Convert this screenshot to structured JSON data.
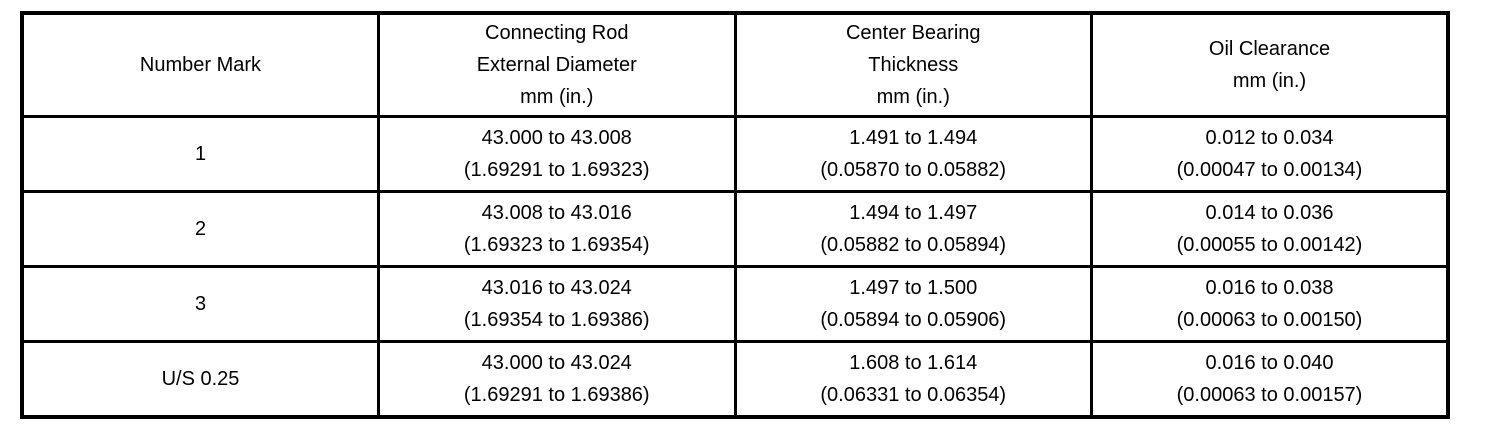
{
  "page": {
    "background_color": "#ffffff",
    "border_color": "#000000",
    "text_color": "#000000"
  },
  "table": {
    "columns": [
      {
        "label_lines": [
          "Number Mark"
        ]
      },
      {
        "label_lines": [
          "Connecting Rod",
          "External Diameter",
          "mm (in.)"
        ]
      },
      {
        "label_lines": [
          "Center Bearing",
          "Thickness",
          "mm (in.)"
        ]
      },
      {
        "label_lines": [
          "Oil Clearance",
          "mm (in.)"
        ]
      }
    ],
    "rows": [
      {
        "number_mark": "1",
        "rod_external_diameter_mm": "43.000 to 43.008",
        "rod_external_diameter_in": "(1.69291 to 1.69323)",
        "center_bearing_thickness_mm": "1.491 to 1.494",
        "center_bearing_thickness_in": "(0.05870 to 0.05882)",
        "oil_clearance_mm": "0.012 to 0.034",
        "oil_clearance_in": "(0.00047 to 0.00134)"
      },
      {
        "number_mark": "2",
        "rod_external_diameter_mm": "43.008 to 43.016",
        "rod_external_diameter_in": "(1.69323 to 1.69354)",
        "center_bearing_thickness_mm": "1.494 to 1.497",
        "center_bearing_thickness_in": "(0.05882 to 0.05894)",
        "oil_clearance_mm": "0.014 to 0.036",
        "oil_clearance_in": "(0.00055 to 0.00142)"
      },
      {
        "number_mark": "3",
        "rod_external_diameter_mm": "43.016 to 43.024",
        "rod_external_diameter_in": "(1.69354 to 1.69386)",
        "center_bearing_thickness_mm": "1.497 to 1.500",
        "center_bearing_thickness_in": "(0.05894 to 0.05906)",
        "oil_clearance_mm": "0.016 to 0.038",
        "oil_clearance_in": "(0.00063 to 0.00150)"
      },
      {
        "number_mark": "U/S 0.25",
        "rod_external_diameter_mm": "43.000 to 43.024",
        "rod_external_diameter_in": "(1.69291 to 1.69386)",
        "center_bearing_thickness_mm": "1.608 to 1.614",
        "center_bearing_thickness_in": "(0.06331 to 0.06354)",
        "oil_clearance_mm": "0.016 to 0.040",
        "oil_clearance_in": "(0.00063 to 0.00157)"
      }
    ]
  }
}
